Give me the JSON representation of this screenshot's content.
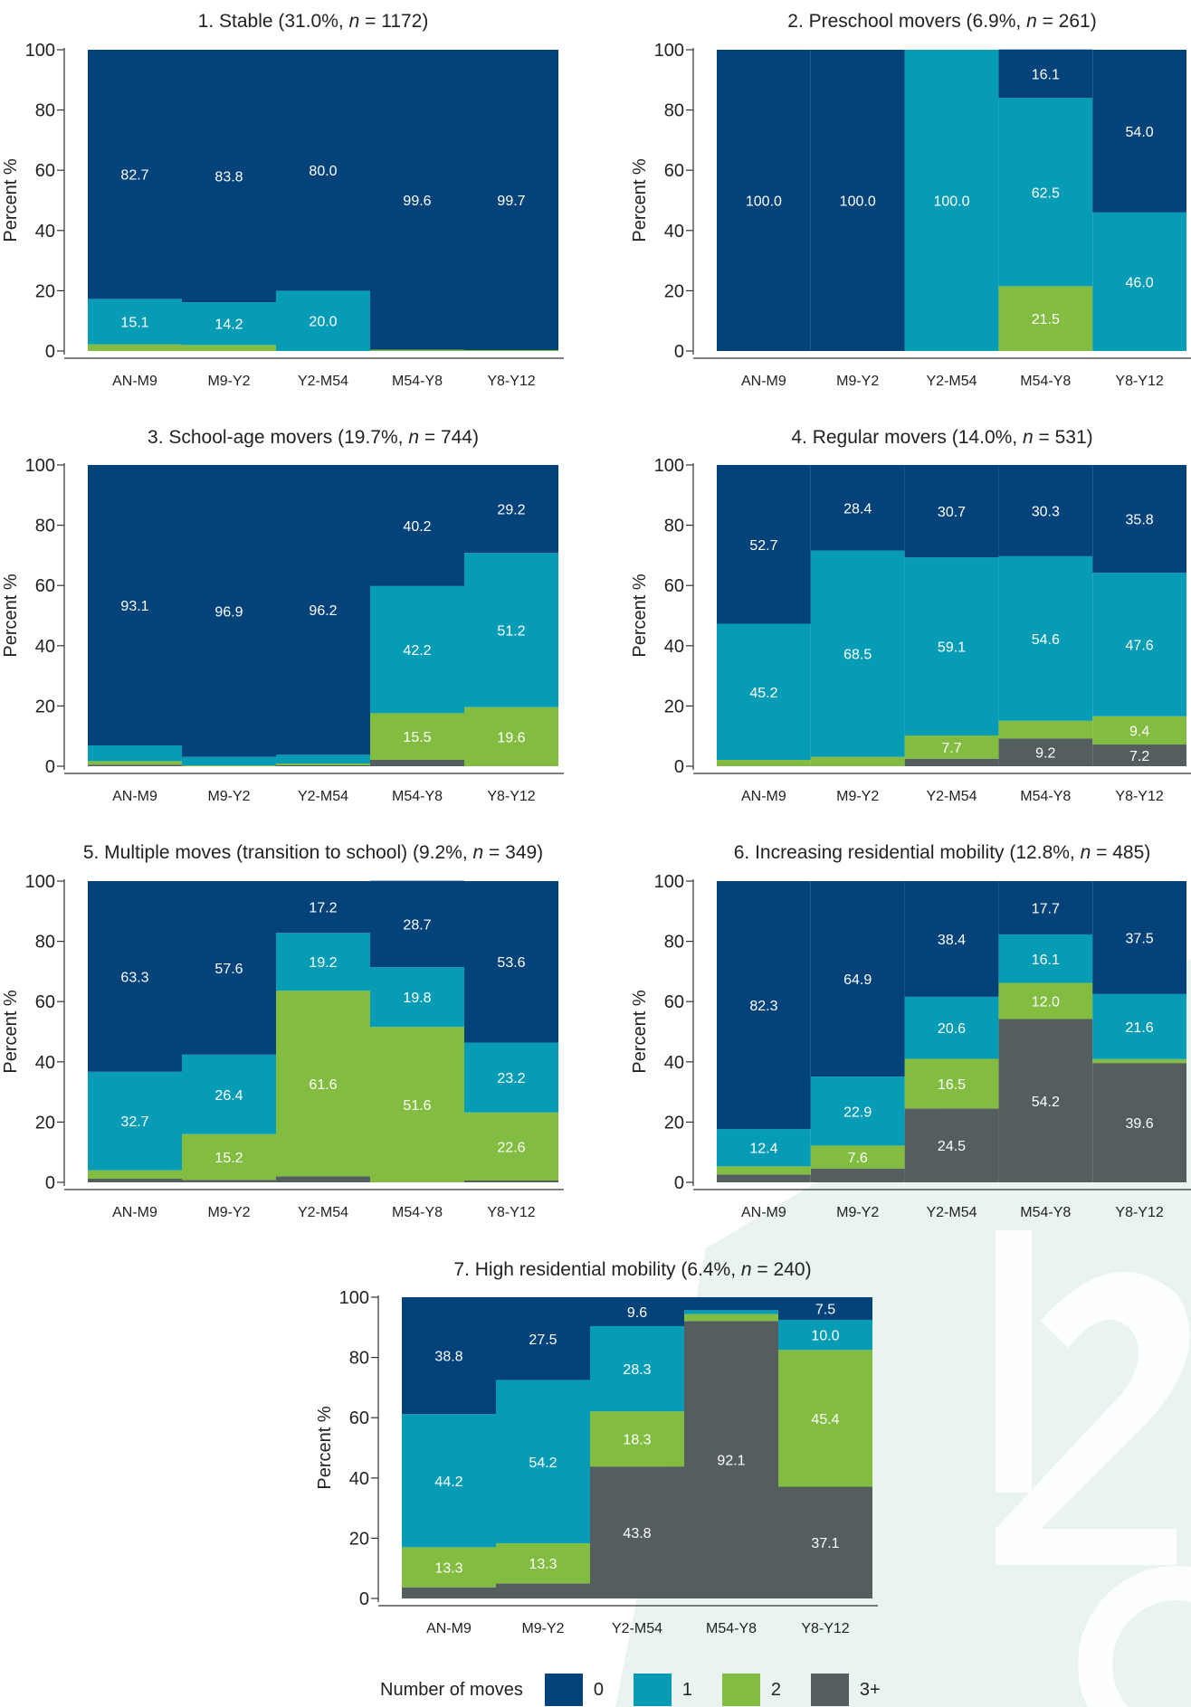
{
  "chart_data": [
    {
      "type": "bar",
      "title": "1. Stable (31.0%, n = 1172)",
      "title_parts": {
        "before": "1. Stable (31.0%, ",
        "n": "n",
        "after": " = 1172)"
      },
      "ylabel": "Percent %",
      "ylim": [
        0,
        100
      ],
      "yticks": [
        0,
        20,
        40,
        60,
        80,
        100
      ],
      "stacked": true,
      "categories": [
        "AN-M9",
        "M9-Y2",
        "Y2-M54",
        "M54-Y8",
        "Y8-Y12"
      ],
      "series": [
        {
          "name": "3+",
          "values": [
            0.0,
            0.0,
            0.0,
            0.0,
            0.0
          ]
        },
        {
          "name": "2",
          "values": [
            2.2,
            2.0,
            0.0,
            0.4,
            0.3
          ]
        },
        {
          "name": "1",
          "values": [
            15.1,
            14.2,
            20.0,
            0.0,
            0.0
          ]
        },
        {
          "name": "0",
          "values": [
            82.7,
            83.8,
            80.0,
            99.6,
            99.7
          ]
        }
      ],
      "labels": [
        {
          "i": 0,
          "s": "1",
          "text": "15.1"
        },
        {
          "i": 0,
          "s": "0",
          "text": "82.7"
        },
        {
          "i": 1,
          "s": "1",
          "text": "14.2"
        },
        {
          "i": 1,
          "s": "0",
          "text": "83.8"
        },
        {
          "i": 2,
          "s": "1",
          "text": "20.0"
        },
        {
          "i": 2,
          "s": "0",
          "text": "80.0"
        },
        {
          "i": 3,
          "s": "0",
          "text": "99.6"
        },
        {
          "i": 4,
          "s": "0",
          "text": "99.7"
        }
      ]
    },
    {
      "type": "bar",
      "title": "2. Preschool movers (6.9%, n = 261)",
      "title_parts": {
        "before": "2. Preschool movers (6.9%, ",
        "n": "n",
        "after": " = 261)"
      },
      "ylabel": "Percent %",
      "ylim": [
        0,
        100
      ],
      "yticks": [
        0,
        20,
        40,
        60,
        80,
        100
      ],
      "stacked": true,
      "categories": [
        "AN-M9",
        "M9-Y2",
        "Y2-M54",
        "M54-Y8",
        "Y8-Y12"
      ],
      "series": [
        {
          "name": "3+",
          "values": [
            0.0,
            0.0,
            0.0,
            0.0,
            0.0
          ]
        },
        {
          "name": "2",
          "values": [
            0.0,
            0.0,
            0.0,
            21.5,
            0.0
          ]
        },
        {
          "name": "1",
          "values": [
            0.0,
            0.0,
            100.0,
            62.5,
            46.0
          ]
        },
        {
          "name": "0",
          "values": [
            100.0,
            100.0,
            0.0,
            16.1,
            54.0
          ]
        }
      ],
      "labels": [
        {
          "i": 0,
          "s": "0",
          "text": "100.0"
        },
        {
          "i": 1,
          "s": "0",
          "text": "100.0"
        },
        {
          "i": 2,
          "s": "1",
          "text": "100.0"
        },
        {
          "i": 3,
          "s": "2",
          "text": "21.5"
        },
        {
          "i": 3,
          "s": "1",
          "text": "62.5"
        },
        {
          "i": 3,
          "s": "0",
          "text": "16.1"
        },
        {
          "i": 4,
          "s": "1",
          "text": "46.0"
        },
        {
          "i": 4,
          "s": "0",
          "text": "54.0"
        }
      ]
    },
    {
      "type": "bar",
      "title": "3. School-age movers (19.7%, n = 744)",
      "title_parts": {
        "before": "3. School-age movers (19.7%, ",
        "n": "n",
        "after": " = 744)"
      },
      "ylabel": "Percent %",
      "ylim": [
        0,
        100
      ],
      "yticks": [
        0,
        20,
        40,
        60,
        80,
        100
      ],
      "stacked": true,
      "categories": [
        "AN-M9",
        "M9-Y2",
        "Y2-M54",
        "M54-Y8",
        "Y8-Y12"
      ],
      "series": [
        {
          "name": "3+",
          "values": [
            0.5,
            0.0,
            0.3,
            2.1,
            0.0
          ]
        },
        {
          "name": "2",
          "values": [
            1.2,
            0.3,
            0.6,
            15.5,
            19.6
          ]
        },
        {
          "name": "1",
          "values": [
            5.2,
            2.8,
            2.9,
            42.2,
            51.2
          ]
        },
        {
          "name": "0",
          "values": [
            93.1,
            96.9,
            96.2,
            40.2,
            29.2
          ]
        }
      ],
      "labels": [
        {
          "i": 0,
          "s": "0",
          "text": "93.1"
        },
        {
          "i": 1,
          "s": "0",
          "text": "96.9"
        },
        {
          "i": 2,
          "s": "0",
          "text": "96.2"
        },
        {
          "i": 3,
          "s": "2",
          "text": "15.5"
        },
        {
          "i": 3,
          "s": "1",
          "text": "42.2"
        },
        {
          "i": 3,
          "s": "0",
          "text": "40.2"
        },
        {
          "i": 4,
          "s": "2",
          "text": "19.6"
        },
        {
          "i": 4,
          "s": "1",
          "text": "51.2"
        },
        {
          "i": 4,
          "s": "0",
          "text": "29.2"
        }
      ]
    },
    {
      "type": "bar",
      "title": "4. Regular movers (14.0%, n = 531)",
      "title_parts": {
        "before": "4. Regular movers (14.0%, ",
        "n": "n",
        "after": " = 531)"
      },
      "ylabel": "Percent %",
      "ylim": [
        0,
        100
      ],
      "yticks": [
        0,
        20,
        40,
        60,
        80,
        100
      ],
      "stacked": true,
      "categories": [
        "AN-M9",
        "M9-Y2",
        "Y2-M54",
        "M54-Y8",
        "Y8-Y12"
      ],
      "series": [
        {
          "name": "3+",
          "values": [
            0.0,
            0.0,
            2.5,
            9.2,
            7.2
          ]
        },
        {
          "name": "2",
          "values": [
            2.1,
            3.1,
            7.7,
            5.9,
            9.4
          ]
        },
        {
          "name": "1",
          "values": [
            45.2,
            68.5,
            59.1,
            54.6,
            47.6
          ]
        },
        {
          "name": "0",
          "values": [
            52.7,
            28.4,
            30.7,
            30.3,
            35.8
          ]
        }
      ],
      "labels": [
        {
          "i": 0,
          "s": "1",
          "text": "45.2"
        },
        {
          "i": 0,
          "s": "0",
          "text": "52.7"
        },
        {
          "i": 1,
          "s": "1",
          "text": "68.5"
        },
        {
          "i": 1,
          "s": "0",
          "text": "28.4"
        },
        {
          "i": 2,
          "s": "2",
          "text": "7.7"
        },
        {
          "i": 2,
          "s": "1",
          "text": "59.1"
        },
        {
          "i": 2,
          "s": "0",
          "text": "30.7"
        },
        {
          "i": 3,
          "s": "3+",
          "text": "9.2"
        },
        {
          "i": 3,
          "s": "1",
          "text": "54.6"
        },
        {
          "i": 3,
          "s": "0",
          "text": "30.3"
        },
        {
          "i": 4,
          "s": "3+",
          "text": "7.2"
        },
        {
          "i": 4,
          "s": "2",
          "text": "9.4"
        },
        {
          "i": 4,
          "s": "1",
          "text": "47.6"
        },
        {
          "i": 4,
          "s": "0",
          "text": "35.8"
        }
      ]
    },
    {
      "type": "bar",
      "title": "5. Multiple moves (transition to school) (9.2%, n = 349)",
      "title_parts": {
        "before": "5. Multiple moves (transition to school) (9.2%, ",
        "n": "n",
        "after": " = 349)"
      },
      "ylabel": "Percent %",
      "ylim": [
        0,
        100
      ],
      "yticks": [
        0,
        20,
        40,
        60,
        80,
        100
      ],
      "stacked": true,
      "categories": [
        "AN-M9",
        "M9-Y2",
        "Y2-M54",
        "M54-Y8",
        "Y8-Y12"
      ],
      "series": [
        {
          "name": "3+",
          "values": [
            1.2,
            0.8,
            2.0,
            0.0,
            0.6
          ]
        },
        {
          "name": "2",
          "values": [
            2.8,
            15.2,
            61.6,
            51.6,
            22.6
          ]
        },
        {
          "name": "1",
          "values": [
            32.7,
            26.4,
            19.2,
            19.8,
            23.2
          ]
        },
        {
          "name": "0",
          "values": [
            63.3,
            57.6,
            17.2,
            28.7,
            53.6
          ]
        }
      ],
      "labels": [
        {
          "i": 0,
          "s": "1",
          "text": "32.7"
        },
        {
          "i": 0,
          "s": "0",
          "text": "63.3"
        },
        {
          "i": 1,
          "s": "2",
          "text": "15.2"
        },
        {
          "i": 1,
          "s": "1",
          "text": "26.4"
        },
        {
          "i": 1,
          "s": "0",
          "text": "57.6"
        },
        {
          "i": 2,
          "s": "2",
          "text": "61.6"
        },
        {
          "i": 2,
          "s": "1",
          "text": "19.2"
        },
        {
          "i": 2,
          "s": "0",
          "text": "17.2"
        },
        {
          "i": 3,
          "s": "2",
          "text": "51.6"
        },
        {
          "i": 3,
          "s": "1",
          "text": "19.8"
        },
        {
          "i": 3,
          "s": "0",
          "text": "28.7"
        },
        {
          "i": 4,
          "s": "2",
          "text": "22.6"
        },
        {
          "i": 4,
          "s": "1",
          "text": "23.2"
        },
        {
          "i": 4,
          "s": "0",
          "text": "53.6"
        }
      ]
    },
    {
      "type": "bar",
      "title": "6. Increasing residential mobility (12.8%, n = 485)",
      "title_parts": {
        "before": "6. Increasing residential mobility (12.8%, ",
        "n": "n",
        "after": " = 485)"
      },
      "ylabel": "Percent %",
      "ylim": [
        0,
        100
      ],
      "yticks": [
        0,
        20,
        40,
        60,
        80,
        100
      ],
      "stacked": true,
      "categories": [
        "AN-M9",
        "M9-Y2",
        "Y2-M54",
        "M54-Y8",
        "Y8-Y12"
      ],
      "series": [
        {
          "name": "3+",
          "values": [
            2.6,
            4.6,
            24.5,
            54.2,
            39.6
          ]
        },
        {
          "name": "2",
          "values": [
            2.7,
            7.6,
            16.5,
            12.0,
            1.3
          ]
        },
        {
          "name": "1",
          "values": [
            12.4,
            22.9,
            20.6,
            16.1,
            21.6
          ]
        },
        {
          "name": "0",
          "values": [
            82.3,
            64.9,
            38.4,
            17.7,
            37.5
          ]
        }
      ],
      "labels": [
        {
          "i": 0,
          "s": "1",
          "text": "12.4"
        },
        {
          "i": 0,
          "s": "0",
          "text": "82.3"
        },
        {
          "i": 1,
          "s": "2",
          "text": "7.6"
        },
        {
          "i": 1,
          "s": "1",
          "text": "22.9"
        },
        {
          "i": 1,
          "s": "0",
          "text": "64.9"
        },
        {
          "i": 2,
          "s": "3+",
          "text": "24.5"
        },
        {
          "i": 2,
          "s": "2",
          "text": "16.5"
        },
        {
          "i": 2,
          "s": "1",
          "text": "20.6"
        },
        {
          "i": 2,
          "s": "0",
          "text": "38.4"
        },
        {
          "i": 3,
          "s": "3+",
          "text": "54.2"
        },
        {
          "i": 3,
          "s": "2",
          "text": "12.0"
        },
        {
          "i": 3,
          "s": "1",
          "text": "16.1"
        },
        {
          "i": 3,
          "s": "0",
          "text": "17.7"
        },
        {
          "i": 4,
          "s": "3+",
          "text": "39.6"
        },
        {
          "i": 4,
          "s": "1",
          "text": "21.6"
        },
        {
          "i": 4,
          "s": "0",
          "text": "37.5"
        }
      ]
    },
    {
      "type": "bar",
      "title": "7. High residential mobility (6.4%, n = 240)",
      "title_parts": {
        "before": "7. High residential mobility (6.4%, ",
        "n": "n",
        "after": " = 240)"
      },
      "ylabel": "Percent %",
      "ylim": [
        0,
        100
      ],
      "yticks": [
        0,
        20,
        40,
        60,
        80,
        100
      ],
      "stacked": true,
      "categories": [
        "AN-M9",
        "M9-Y2",
        "Y2-M54",
        "M54-Y8",
        "Y8-Y12"
      ],
      "series": [
        {
          "name": "3+",
          "values": [
            3.7,
            5.0,
            43.8,
            92.1,
            37.1
          ]
        },
        {
          "name": "2",
          "values": [
            13.3,
            13.3,
            18.3,
            2.3,
            45.4
          ]
        },
        {
          "name": "1",
          "values": [
            44.2,
            54.2,
            28.3,
            1.3,
            10.0
          ]
        },
        {
          "name": "0",
          "values": [
            38.8,
            27.5,
            9.6,
            4.3,
            7.5
          ]
        }
      ],
      "labels": [
        {
          "i": 0,
          "s": "2",
          "text": "13.3"
        },
        {
          "i": 0,
          "s": "1",
          "text": "44.2"
        },
        {
          "i": 0,
          "s": "0",
          "text": "38.8"
        },
        {
          "i": 1,
          "s": "2",
          "text": "13.3"
        },
        {
          "i": 1,
          "s": "1",
          "text": "54.2"
        },
        {
          "i": 1,
          "s": "0",
          "text": "27.5"
        },
        {
          "i": 2,
          "s": "3+",
          "text": "43.8"
        },
        {
          "i": 2,
          "s": "2",
          "text": "18.3"
        },
        {
          "i": 2,
          "s": "1",
          "text": "28.3"
        },
        {
          "i": 2,
          "s": "0",
          "text": "9.6"
        },
        {
          "i": 3,
          "s": "3+",
          "text": "92.1"
        },
        {
          "i": 4,
          "s": "3+",
          "text": "37.1"
        },
        {
          "i": 4,
          "s": "2",
          "text": "45.4"
        },
        {
          "i": 4,
          "s": "1",
          "text": "10.0"
        },
        {
          "i": 4,
          "s": "0",
          "text": "7.5"
        }
      ]
    }
  ],
  "legend": {
    "title": "Number of moves",
    "items": [
      {
        "label": "0",
        "color": "#04427a"
      },
      {
        "label": "1",
        "color": "#079cb5"
      },
      {
        "label": "2",
        "color": "#82bd41"
      },
      {
        "label": "3+",
        "color": "#545e5f"
      }
    ]
  },
  "colors": {
    "0": "#04427a",
    "1": "#079cb5",
    "2": "#82bd41",
    "3+": "#545e5f"
  }
}
